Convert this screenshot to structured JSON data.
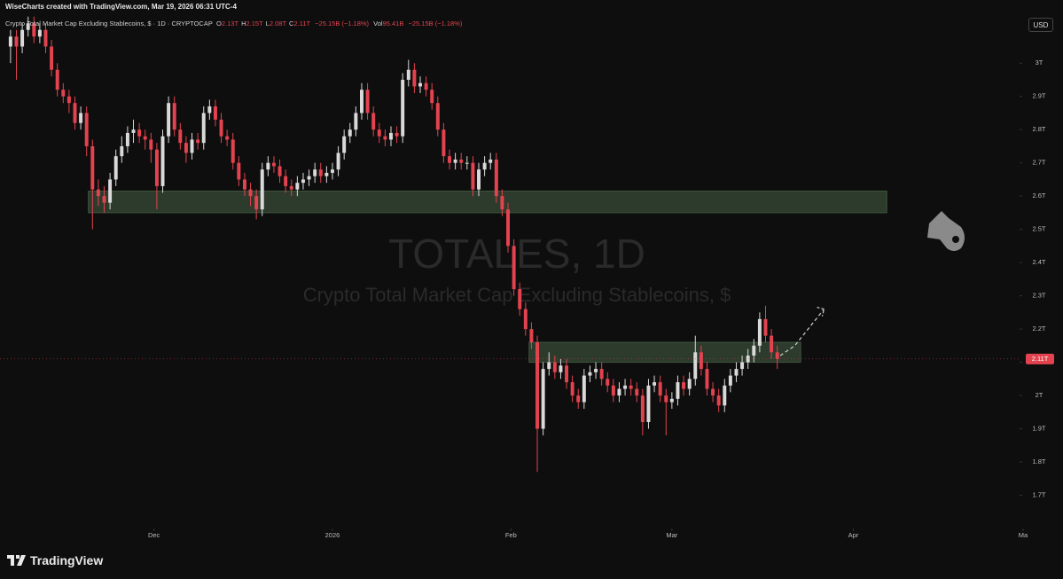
{
  "header": "WiseCharts created with TradingView.com, Mar 19, 2026 06:31 UTC-4",
  "legend": {
    "symbol": "Crypto Total Market Cap Excluding Stablecoins, $ · 1D · CRYPTOCAP",
    "fields": [
      {
        "key": "O",
        "value": "2.13T"
      },
      {
        "key": "H",
        "value": "2.15T"
      },
      {
        "key": "L",
        "value": "2.08T"
      },
      {
        "key": "C",
        "value": "2.11T"
      }
    ],
    "change": "−25.15B (−1.18%)",
    "volume_key": "Vol",
    "volume": "95.41B",
    "volume_change": "−25.15B (−1.18%)"
  },
  "currency_button": "USD",
  "footer": "TradingView",
  "chart_data": {
    "type": "candlestick",
    "watermark": "TOTALES, 1D",
    "watermark_subtitle": "Crypto Total Market Cap Excluding Stablecoins, $",
    "up_color": "#d9d9d9",
    "down_color": "#e2434f",
    "xlim": [
      -1.8,
      172.4
    ],
    "xticks": [
      {
        "value": 24.5,
        "label": "Dec"
      },
      {
        "value": 55,
        "label": "2026"
      },
      {
        "value": 85.5,
        "label": "Feb"
      },
      {
        "value": 113,
        "label": "Mar"
      },
      {
        "value": 144,
        "label": "Apr"
      },
      {
        "value": 173,
        "label": "Ma"
      }
    ],
    "ylim": [
      1.6,
      3.19
    ],
    "yticks": [
      {
        "value": 3,
        "label": "3T"
      },
      {
        "value": 2.9,
        "label": "2.9T"
      },
      {
        "value": 2.8,
        "label": "2.8T"
      },
      {
        "value": 2.7,
        "label": "2.7T"
      },
      {
        "value": 2.6,
        "label": "2.6T"
      },
      {
        "value": 2.5,
        "label": "2.5T"
      },
      {
        "value": 2.4,
        "label": "2.4T"
      },
      {
        "value": 2.3,
        "label": "2.3T"
      },
      {
        "value": 2.2,
        "label": "2.2T"
      },
      {
        "value": 2.1,
        "label": "2.1T"
      },
      {
        "value": 2,
        "label": "2T"
      },
      {
        "value": 1.9,
        "label": "1.9T"
      },
      {
        "value": 1.8,
        "label": "1.8T"
      },
      {
        "value": 1.7,
        "label": "1.7T"
      }
    ],
    "last_price": {
      "value": 2.11,
      "label": "2.11T"
    },
    "zones": [
      {
        "from": 2.55,
        "to": 2.615,
        "start": 13.3,
        "end": 149.7,
        "color": "#2c3b2c"
      },
      {
        "from": 2.1,
        "to": 2.16,
        "start": 88.6,
        "end": 135,
        "color": "#2c3b2c"
      }
    ],
    "projection": {
      "x": [
        131.5,
        134,
        139
      ],
      "y": [
        2.12,
        2.15,
        2.26
      ],
      "color": "#cfcfcf"
    },
    "candles": [
      [
        3.05,
        3.1,
        3.0,
        3.08
      ],
      [
        3.08,
        3.1,
        2.95,
        3.05
      ],
      [
        3.05,
        3.12,
        3.03,
        3.1
      ],
      [
        3.1,
        3.14,
        3.08,
        3.12
      ],
      [
        3.12,
        3.14,
        3.06,
        3.08
      ],
      [
        3.08,
        3.12,
        3.06,
        3.1
      ],
      [
        3.1,
        3.12,
        3.03,
        3.05
      ],
      [
        3.05,
        3.07,
        2.96,
        2.98
      ],
      [
        2.98,
        3.0,
        2.9,
        2.92
      ],
      [
        2.92,
        2.94,
        2.88,
        2.9
      ],
      [
        2.9,
        2.92,
        2.85,
        2.88
      ],
      [
        2.88,
        2.9,
        2.8,
        2.82
      ],
      [
        2.82,
        2.87,
        2.8,
        2.85
      ],
      [
        2.85,
        2.87,
        2.72,
        2.75
      ],
      [
        2.75,
        2.77,
        2.5,
        2.62
      ],
      [
        2.62,
        2.65,
        2.57,
        2.6
      ],
      [
        2.6,
        2.63,
        2.55,
        2.58
      ],
      [
        2.58,
        2.67,
        2.56,
        2.65
      ],
      [
        2.65,
        2.74,
        2.63,
        2.72
      ],
      [
        2.72,
        2.78,
        2.7,
        2.75
      ],
      [
        2.75,
        2.81,
        2.73,
        2.79
      ],
      [
        2.79,
        2.83,
        2.76,
        2.8
      ],
      [
        2.8,
        2.82,
        2.76,
        2.78
      ],
      [
        2.78,
        2.8,
        2.74,
        2.77
      ],
      [
        2.77,
        2.79,
        2.7,
        2.74
      ],
      [
        2.74,
        2.76,
        2.56,
        2.63
      ],
      [
        2.63,
        2.8,
        2.61,
        2.78
      ],
      [
        2.78,
        2.9,
        2.76,
        2.88
      ],
      [
        2.88,
        2.9,
        2.78,
        2.8
      ],
      [
        2.8,
        2.82,
        2.74,
        2.76
      ],
      [
        2.76,
        2.78,
        2.7,
        2.73
      ],
      [
        2.73,
        2.79,
        2.71,
        2.77
      ],
      [
        2.77,
        2.79,
        2.74,
        2.76
      ],
      [
        2.76,
        2.87,
        2.74,
        2.85
      ],
      [
        2.85,
        2.89,
        2.83,
        2.87
      ],
      [
        2.87,
        2.89,
        2.81,
        2.83
      ],
      [
        2.83,
        2.85,
        2.76,
        2.78
      ],
      [
        2.78,
        2.8,
        2.75,
        2.77
      ],
      [
        2.77,
        2.79,
        2.68,
        2.7
      ],
      [
        2.7,
        2.72,
        2.63,
        2.65
      ],
      [
        2.65,
        2.67,
        2.6,
        2.62
      ],
      [
        2.62,
        2.64,
        2.57,
        2.6
      ],
      [
        2.6,
        2.62,
        2.53,
        2.56
      ],
      [
        2.56,
        2.7,
        2.54,
        2.68
      ],
      [
        2.68,
        2.72,
        2.66,
        2.7
      ],
      [
        2.7,
        2.72,
        2.67,
        2.69
      ],
      [
        2.69,
        2.71,
        2.64,
        2.66
      ],
      [
        2.66,
        2.68,
        2.61,
        2.63
      ],
      [
        2.63,
        2.65,
        2.6,
        2.62
      ],
      [
        2.62,
        2.66,
        2.6,
        2.64
      ],
      [
        2.64,
        2.67,
        2.62,
        2.65
      ],
      [
        2.65,
        2.68,
        2.63,
        2.66
      ],
      [
        2.66,
        2.7,
        2.64,
        2.68
      ],
      [
        2.68,
        2.7,
        2.64,
        2.66
      ],
      [
        2.66,
        2.69,
        2.64,
        2.67
      ],
      [
        2.67,
        2.7,
        2.65,
        2.68
      ],
      [
        2.68,
        2.75,
        2.66,
        2.73
      ],
      [
        2.73,
        2.8,
        2.71,
        2.78
      ],
      [
        2.78,
        2.82,
        2.76,
        2.8
      ],
      [
        2.8,
        2.87,
        2.78,
        2.85
      ],
      [
        2.85,
        2.94,
        2.83,
        2.92
      ],
      [
        2.92,
        2.94,
        2.83,
        2.85
      ],
      [
        2.85,
        2.87,
        2.78,
        2.8
      ],
      [
        2.8,
        2.82,
        2.76,
        2.78
      ],
      [
        2.78,
        2.8,
        2.75,
        2.77
      ],
      [
        2.77,
        2.81,
        2.75,
        2.79
      ],
      [
        2.79,
        2.81,
        2.76,
        2.78
      ],
      [
        2.78,
        2.97,
        2.76,
        2.95
      ],
      [
        2.95,
        3.01,
        2.93,
        2.98
      ],
      [
        2.98,
        3.0,
        2.91,
        2.93
      ],
      [
        2.93,
        2.96,
        2.91,
        2.94
      ],
      [
        2.94,
        2.96,
        2.9,
        2.92
      ],
      [
        2.92,
        2.94,
        2.86,
        2.88
      ],
      [
        2.88,
        2.9,
        2.78,
        2.8
      ],
      [
        2.8,
        2.82,
        2.7,
        2.72
      ],
      [
        2.72,
        2.74,
        2.68,
        2.7
      ],
      [
        2.7,
        2.73,
        2.68,
        2.71
      ],
      [
        2.71,
        2.73,
        2.68,
        2.7
      ],
      [
        2.7,
        2.72,
        2.68,
        2.7
      ],
      [
        2.7,
        2.72,
        2.6,
        2.62
      ],
      [
        2.62,
        2.7,
        2.6,
        2.68
      ],
      [
        2.68,
        2.72,
        2.66,
        2.7
      ],
      [
        2.7,
        2.73,
        2.68,
        2.71
      ],
      [
        2.71,
        2.73,
        2.58,
        2.6
      ],
      [
        2.6,
        2.62,
        2.54,
        2.56
      ],
      [
        2.56,
        2.58,
        2.43,
        2.45
      ],
      [
        2.45,
        2.47,
        2.3,
        2.32
      ],
      [
        2.32,
        2.34,
        2.24,
        2.26
      ],
      [
        2.26,
        2.28,
        2.18,
        2.2
      ],
      [
        2.2,
        2.22,
        2.14,
        2.16
      ],
      [
        2.16,
        2.18,
        1.77,
        1.9
      ],
      [
        1.9,
        2.1,
        1.88,
        2.08
      ],
      [
        2.08,
        2.13,
        2.06,
        2.1
      ],
      [
        2.1,
        2.12,
        2.05,
        2.07
      ],
      [
        2.07,
        2.11,
        2.05,
        2.09
      ],
      [
        2.09,
        2.11,
        2.02,
        2.04
      ],
      [
        2.04,
        2.06,
        1.98,
        2.0
      ],
      [
        2.0,
        2.02,
        1.96,
        1.98
      ],
      [
        1.98,
        2.08,
        1.96,
        2.06
      ],
      [
        2.06,
        2.09,
        2.04,
        2.07
      ],
      [
        2.07,
        2.1,
        2.05,
        2.08
      ],
      [
        2.08,
        2.1,
        2.03,
        2.05
      ],
      [
        2.05,
        2.07,
        2.01,
        2.03
      ],
      [
        2.03,
        2.05,
        1.98,
        2.0
      ],
      [
        2.0,
        2.04,
        1.98,
        2.02
      ],
      [
        2.02,
        2.05,
        2.0,
        2.03
      ],
      [
        2.03,
        2.05,
        2.0,
        2.02
      ],
      [
        2.02,
        2.04,
        1.98,
        2.0
      ],
      [
        2.0,
        2.02,
        1.88,
        1.92
      ],
      [
        1.92,
        2.05,
        1.9,
        2.03
      ],
      [
        2.03,
        2.06,
        2.01,
        2.04
      ],
      [
        2.04,
        2.06,
        1.98,
        2.0
      ],
      [
        2.0,
        2.02,
        1.88,
        1.98
      ],
      [
        1.98,
        2.01,
        1.96,
        1.99
      ],
      [
        1.99,
        2.06,
        1.97,
        2.04
      ],
      [
        2.04,
        2.06,
        2.0,
        2.02
      ],
      [
        2.02,
        2.07,
        2.0,
        2.05
      ],
      [
        2.05,
        2.18,
        2.03,
        2.13
      ],
      [
        2.13,
        2.15,
        2.06,
        2.08
      ],
      [
        2.08,
        2.1,
        2.0,
        2.02
      ],
      [
        2.02,
        2.04,
        1.98,
        2.0
      ],
      [
        2.0,
        2.02,
        1.95,
        1.97
      ],
      [
        1.97,
        2.05,
        1.95,
        2.03
      ],
      [
        2.03,
        2.08,
        2.01,
        2.06
      ],
      [
        2.06,
        2.1,
        2.04,
        2.08
      ],
      [
        2.08,
        2.12,
        2.06,
        2.1
      ],
      [
        2.1,
        2.14,
        2.08,
        2.12
      ],
      [
        2.12,
        2.17,
        2.1,
        2.15
      ],
      [
        2.15,
        2.25,
        2.13,
        2.23
      ],
      [
        2.23,
        2.27,
        2.16,
        2.18
      ],
      [
        2.18,
        2.2,
        2.11,
        2.13
      ],
      [
        2.13,
        2.15,
        2.08,
        2.11
      ]
    ]
  }
}
